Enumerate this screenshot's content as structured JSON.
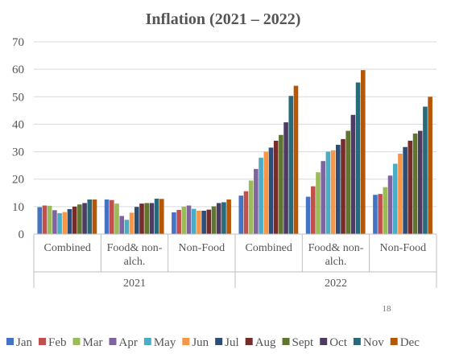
{
  "chart_data": {
    "type": "bar",
    "title": "Inflation (2021 – 2022)",
    "xlabel": "",
    "ylabel": "",
    "ylim": [
      0,
      70
    ],
    "yticks": [
      0,
      10,
      20,
      30,
      40,
      50,
      60,
      70
    ],
    "grid": true,
    "legend_position": "bottom",
    "groups": [
      {
        "label": "2021",
        "categories": [
          "Combined",
          "Food& non-alch.",
          "Non-Food"
        ]
      },
      {
        "label": "2022",
        "categories": [
          "Combined",
          "Food& non-alch.",
          "Non-Food"
        ]
      }
    ],
    "categories": [
      [
        "Combined"
      ],
      [
        "Food& non-",
        "alch."
      ],
      [
        "Non-Food"
      ],
      [
        "Combined"
      ],
      [
        "Food& non-",
        "alch."
      ],
      [
        "Non-Food"
      ]
    ],
    "series": [
      {
        "name": "Jan",
        "color": "#4472C4",
        "values": [
          9.8,
          12.6,
          7.9,
          14.0,
          13.6,
          14.3
        ]
      },
      {
        "name": "Feb",
        "color": "#C0504D",
        "values": [
          10.4,
          12.4,
          8.8,
          15.6,
          17.4,
          14.6
        ]
      },
      {
        "name": "Mar",
        "color": "#9BBB59",
        "values": [
          10.3,
          11.1,
          10.0,
          19.5,
          22.5,
          17.1
        ]
      },
      {
        "name": "Apr",
        "color": "#8064A2",
        "values": [
          8.7,
          6.6,
          10.4,
          23.7,
          26.6,
          21.3
        ]
      },
      {
        "name": "May",
        "color": "#4BACC6",
        "values": [
          7.6,
          5.2,
          9.2,
          27.8,
          30.0,
          25.6
        ]
      },
      {
        "name": "Jun",
        "color": "#F79646",
        "values": [
          8.0,
          7.8,
          8.5,
          30.0,
          30.5,
          29.3
        ]
      },
      {
        "name": "Jul",
        "color": "#2C4D75",
        "values": [
          9.1,
          9.9,
          8.5,
          31.5,
          32.5,
          31.7
        ]
      },
      {
        "name": "Aug",
        "color": "#772C2A",
        "values": [
          10.0,
          11.1,
          8.9,
          34.0,
          34.6,
          34.0
        ]
      },
      {
        "name": "Sept",
        "color": "#5F7530",
        "values": [
          10.8,
          11.3,
          10.1,
          36.1,
          37.6,
          36.6
        ]
      },
      {
        "name": "Oct",
        "color": "#4D3B62",
        "values": [
          11.3,
          11.3,
          11.3,
          40.7,
          43.4,
          37.6
        ]
      },
      {
        "name": "Nov",
        "color": "#276A7C",
        "values": [
          12.6,
          12.9,
          11.6,
          50.3,
          55.2,
          46.4
        ]
      },
      {
        "name": "Dec",
        "color": "#B65708",
        "values": [
          12.6,
          12.8,
          12.6,
          54.0,
          59.7,
          50.0
        ]
      }
    ]
  },
  "page_number": "18"
}
